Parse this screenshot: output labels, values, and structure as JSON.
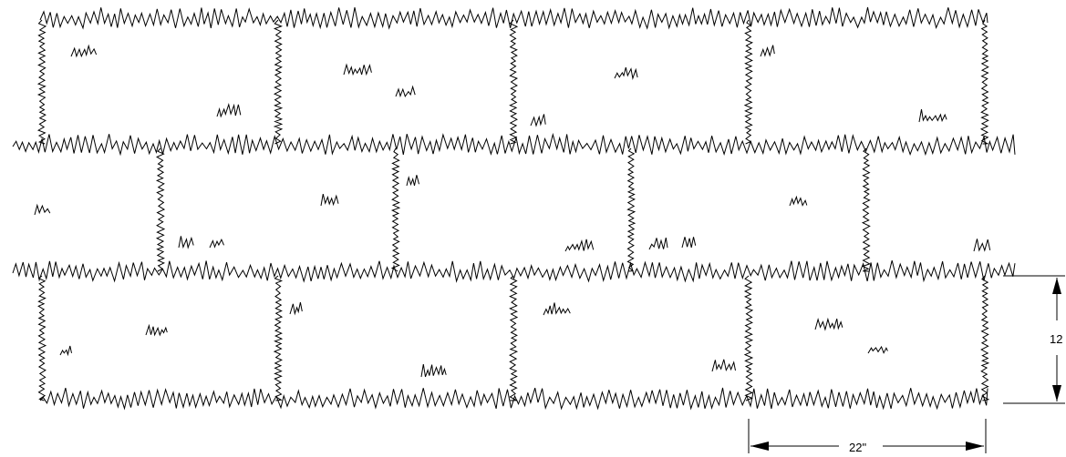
{
  "drawing": {
    "line_color": "#000000",
    "background_color": "#ffffff",
    "paver_rows": [
      {
        "row": 1,
        "count": 4
      },
      {
        "row": 2,
        "count": 5
      },
      {
        "row": 3,
        "count": 4
      }
    ]
  },
  "dimensions": {
    "height_label": "12",
    "width_label": "22\""
  }
}
